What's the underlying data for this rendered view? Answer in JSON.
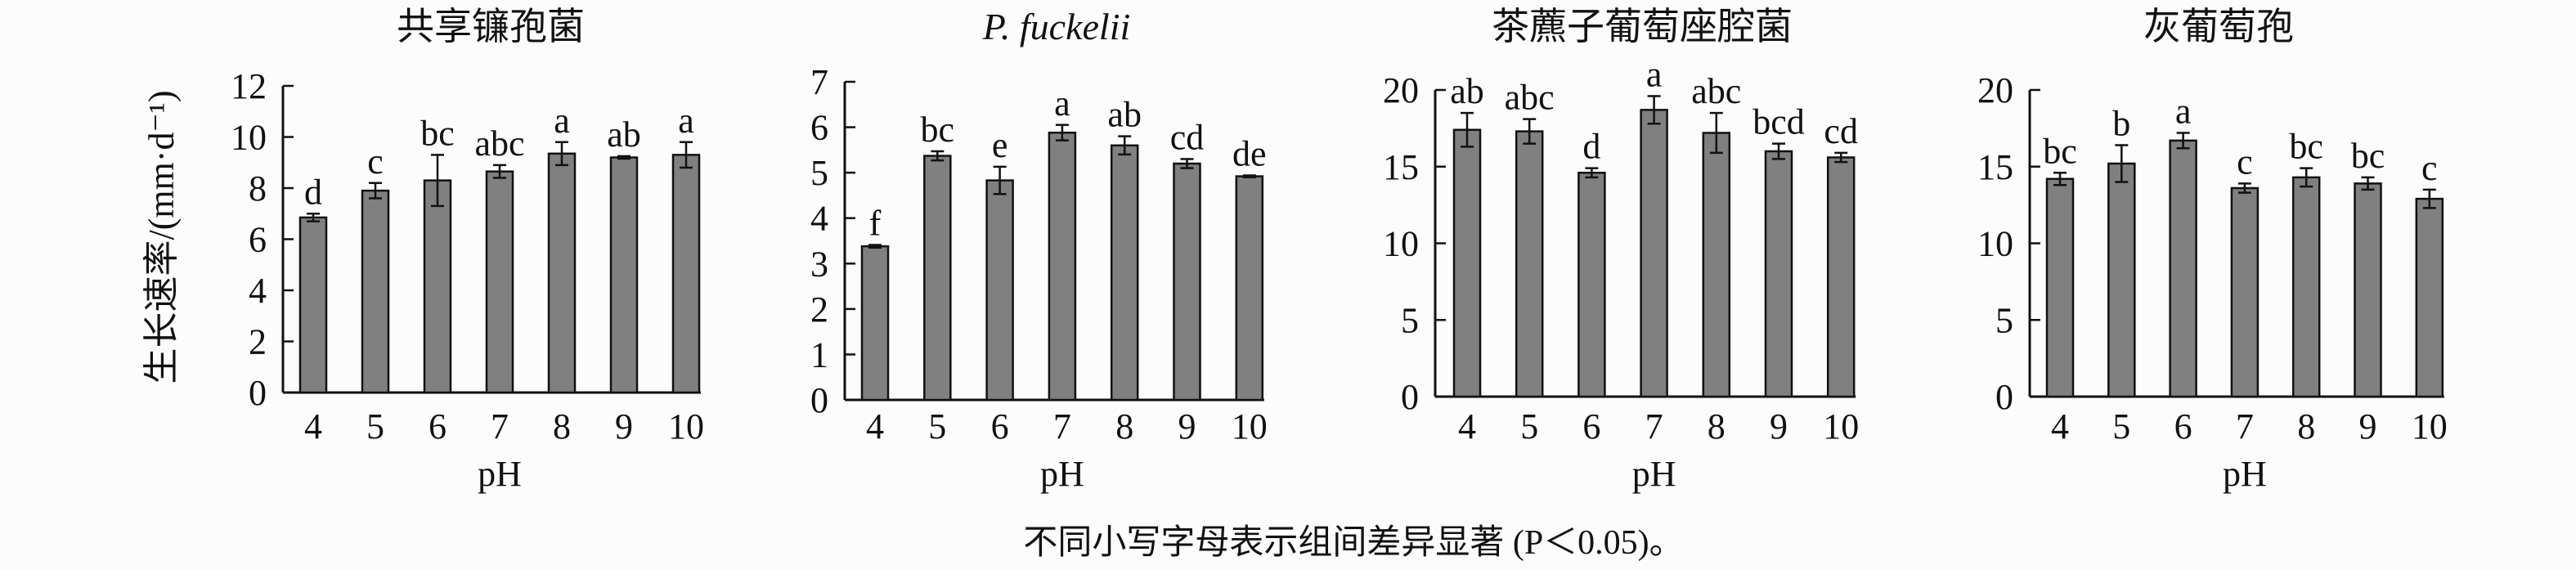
{
  "figure": {
    "ylabel": "生长速率/(mm·d⁻¹)",
    "caption": "不同小写字母表示组间差异显著 (P＜0.05)。"
  },
  "chart_data": [
    {
      "type": "bar",
      "title": "共享镰孢菌",
      "title_italic": false,
      "xlabel": "pH",
      "ylabel": "生长速率/(mm·d⁻¹)",
      "categories": [
        "4",
        "5",
        "6",
        "7",
        "8",
        "9",
        "10"
      ],
      "values": [
        6.85,
        7.9,
        8.3,
        8.65,
        9.35,
        9.2,
        9.3
      ],
      "errors": [
        0.15,
        0.3,
        1.0,
        0.25,
        0.45,
        0.05,
        0.5
      ],
      "letters": [
        "d",
        "c",
        "bc",
        "abc",
        "a",
        "ab",
        "a"
      ],
      "ylim": [
        0,
        12
      ],
      "yticks": [
        0,
        2,
        4,
        6,
        8,
        10,
        12
      ],
      "bar_color": "#808080",
      "grid": false
    },
    {
      "type": "bar",
      "title": "P. fuckelii",
      "title_italic": true,
      "xlabel": "pH",
      "categories": [
        "4",
        "5",
        "6",
        "7",
        "8",
        "9",
        "10"
      ],
      "values": [
        3.38,
        5.37,
        4.83,
        5.88,
        5.6,
        5.2,
        4.92
      ],
      "errors": [
        0.03,
        0.1,
        0.3,
        0.17,
        0.2,
        0.1,
        0.02
      ],
      "letters": [
        "f",
        "bc",
        "e",
        "a",
        "ab",
        "cd",
        "de"
      ],
      "ylim": [
        0,
        7
      ],
      "yticks": [
        0,
        1,
        2,
        3,
        4,
        5,
        6,
        7
      ],
      "bar_color": "#808080",
      "grid": false
    },
    {
      "type": "bar",
      "title": "茶藨子葡萄座腔菌",
      "title_italic": false,
      "xlabel": "pH",
      "categories": [
        "4",
        "5",
        "6",
        "7",
        "8",
        "9",
        "10"
      ],
      "values": [
        17.4,
        17.3,
        14.6,
        18.7,
        17.2,
        16.0,
        15.6
      ],
      "errors": [
        1.1,
        0.8,
        0.3,
        0.9,
        1.3,
        0.5,
        0.3
      ],
      "letters": [
        "ab",
        "abc",
        "d",
        "a",
        "abc",
        "bcd",
        "cd"
      ],
      "ylim": [
        0,
        20
      ],
      "yticks": [
        0,
        5,
        10,
        15,
        20
      ],
      "bar_color": "#808080",
      "grid": false
    },
    {
      "type": "bar",
      "title": "灰葡萄孢",
      "title_italic": false,
      "xlabel": "pH",
      "categories": [
        "4",
        "5",
        "6",
        "7",
        "8",
        "9",
        "10"
      ],
      "values": [
        14.2,
        15.2,
        16.7,
        13.6,
        14.3,
        13.9,
        12.9
      ],
      "errors": [
        0.4,
        1.2,
        0.5,
        0.3,
        0.6,
        0.4,
        0.6
      ],
      "letters": [
        "bc",
        "b",
        "a",
        "c",
        "bc",
        "bc",
        "c"
      ],
      "ylim": [
        0,
        20
      ],
      "yticks": [
        0,
        5,
        10,
        15,
        20
      ],
      "bar_color": "#808080",
      "grid": false
    }
  ]
}
